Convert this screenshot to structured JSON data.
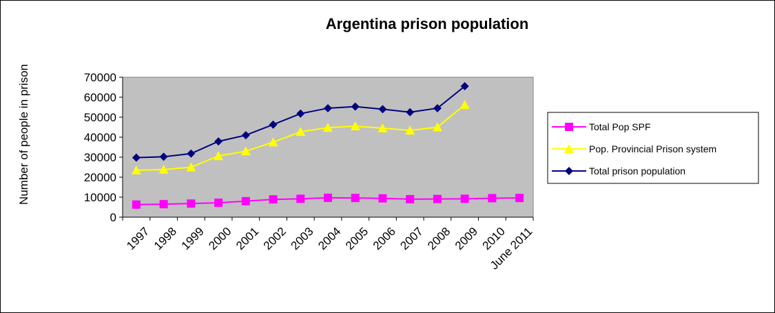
{
  "chart_data": {
    "type": "line",
    "title": "Argentina prison population",
    "xlabel": "",
    "ylabel": "Number of people in prison",
    "categories": [
      "1997",
      "1998",
      "1999",
      "2000",
      "2001",
      "2002",
      "2003",
      "2004",
      "2005",
      "2006",
      "2007",
      "2008",
      "2009",
      "2010",
      "June 2011"
    ],
    "ylim": [
      0,
      70000
    ],
    "yticks": [
      0,
      10000,
      20000,
      30000,
      40000,
      50000,
      60000,
      70000
    ],
    "plot_background": "#c0c0c0",
    "legend_position": "right",
    "series": [
      {
        "name": "Total Pop SPF",
        "color": "#ff00ff",
        "marker": "square",
        "values": [
          6300,
          6500,
          6800,
          7200,
          8000,
          8900,
          9200,
          9700,
          9600,
          9400,
          9000,
          9100,
          9200,
          9500,
          9600
        ]
      },
      {
        "name": "Pop. Provincial Prison system",
        "color": "#ffff00",
        "marker": "triangle",
        "values": [
          23500,
          23800,
          25000,
          30600,
          33000,
          37500,
          42700,
          44800,
          45500,
          44500,
          43400,
          45000,
          56200,
          null,
          null
        ]
      },
      {
        "name": "Total prison population",
        "color": "#000080",
        "marker": "diamond",
        "values": [
          29800,
          30200,
          31800,
          37900,
          41000,
          46300,
          51800,
          54500,
          55300,
          54000,
          52500,
          54500,
          65500,
          null,
          null
        ]
      }
    ]
  }
}
